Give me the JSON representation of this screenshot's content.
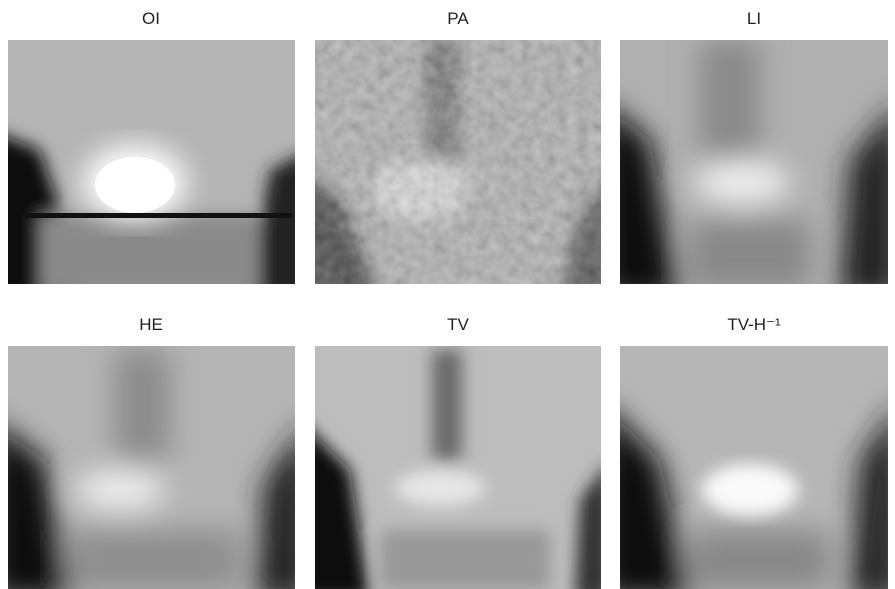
{
  "panels": [
    {
      "title": "OI"
    },
    {
      "title": "PA"
    },
    {
      "title": "LI"
    },
    {
      "title": "HE"
    },
    {
      "title": "TV"
    },
    {
      "title": "TV-H⁻¹"
    }
  ]
}
